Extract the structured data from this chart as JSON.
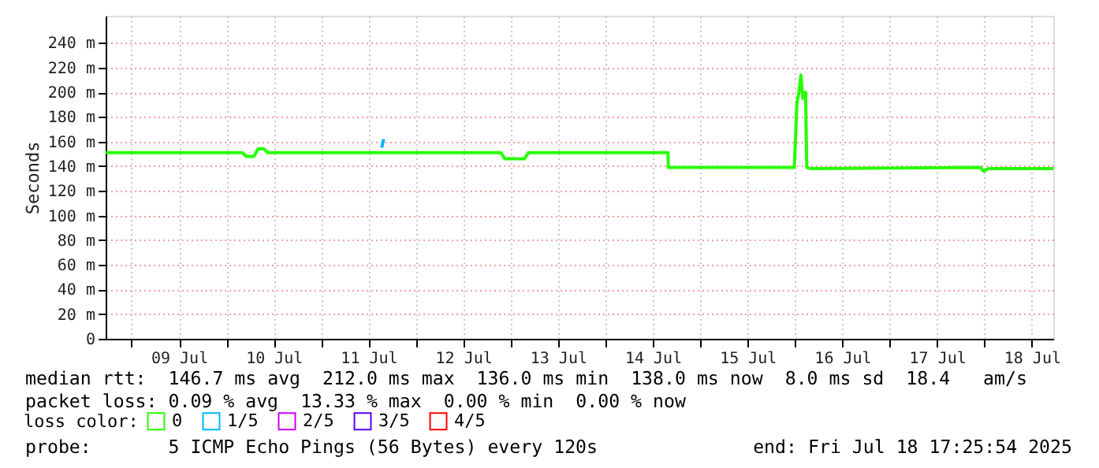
{
  "chart_data": {
    "type": "line",
    "ylabel": "Seconds",
    "legend_title": "loss color:",
    "legend": "bottom",
    "grid": true,
    "marker": "none",
    "line_style": "solid",
    "xlim": [
      "2025-07-08T17:25",
      "2025-07-18T17:25"
    ],
    "xticks": [
      {
        "value": "2025-07-09T00:00",
        "label": null
      },
      {
        "value": "2025-07-09T12:00",
        "label": "09 Jul"
      },
      {
        "value": "2025-07-10T00:00",
        "label": null
      },
      {
        "value": "2025-07-10T12:00",
        "label": "10 Jul"
      },
      {
        "value": "2025-07-11T00:00",
        "label": null
      },
      {
        "value": "2025-07-11T12:00",
        "label": "11 Jul"
      },
      {
        "value": "2025-07-12T00:00",
        "label": null
      },
      {
        "value": "2025-07-12T12:00",
        "label": "12 Jul"
      },
      {
        "value": "2025-07-13T00:00",
        "label": null
      },
      {
        "value": "2025-07-13T12:00",
        "label": "13 Jul"
      },
      {
        "value": "2025-07-14T00:00",
        "label": null
      },
      {
        "value": "2025-07-14T12:00",
        "label": "14 Jul"
      },
      {
        "value": "2025-07-15T00:00",
        "label": null
      },
      {
        "value": "2025-07-15T12:00",
        "label": "15 Jul"
      },
      {
        "value": "2025-07-16T00:00",
        "label": null
      },
      {
        "value": "2025-07-16T12:00",
        "label": "16 Jul"
      },
      {
        "value": "2025-07-17T00:00",
        "label": null
      },
      {
        "value": "2025-07-17T12:00",
        "label": "17 Jul"
      },
      {
        "value": "2025-07-18T00:00",
        "label": null
      },
      {
        "value": "2025-07-18T12:00",
        "label": "18 Jul"
      }
    ],
    "ylim": [
      0,
      262
    ],
    "yticks": [
      0,
      {
        "value": 20,
        "label": "20 m"
      },
      {
        "value": 40,
        "label": "40 m"
      },
      {
        "value": 60,
        "label": "60 m"
      },
      {
        "value": 80,
        "label": "80 m"
      },
      {
        "value": 100,
        "label": "100 m"
      },
      {
        "value": 120,
        "label": "120 m"
      },
      {
        "value": 140,
        "label": "140 m"
      },
      {
        "value": 160,
        "label": "160 m"
      },
      {
        "value": 180,
        "label": "180 m"
      },
      {
        "value": 200,
        "label": "200 m"
      },
      {
        "value": 220,
        "label": "220 m"
      },
      {
        "value": 240,
        "label": "240 m"
      }
    ],
    "series": [
      {
        "name": "0",
        "color": "#26ff00",
        "x": [
          "2025-07-08T17:30",
          "2025-07-10T04:00",
          "2025-07-10T05:00",
          "2025-07-10T07:00",
          "2025-07-10T08:00",
          "2025-07-10T09:30",
          "2025-07-10T10:30",
          "2025-07-12T21:30",
          "2025-07-12T22:30",
          "2025-07-13T03:30",
          "2025-07-13T04:30",
          "2025-07-14T15:50",
          "2025-07-14T15:55",
          "2025-07-15T23:50",
          "2025-07-16T00:30",
          "2025-07-16T01:00",
          "2025-07-16T01:30",
          "2025-07-16T02:00",
          "2025-07-16T02:40",
          "2025-07-16T03:00",
          "2025-07-16T04:00",
          "2025-07-17T23:00",
          "2025-07-17T23:45",
          "2025-07-18T01:00",
          "2025-07-18T17:25"
        ],
        "values": [
          151,
          151,
          148,
          148,
          154,
          154,
          151,
          151,
          146,
          146,
          151,
          151,
          139,
          139,
          191,
          200,
          214,
          195,
          200,
          139,
          138,
          139,
          136,
          138,
          138
        ]
      },
      {
        "name": "1/5",
        "color": "#00b8ff",
        "x": [
          "2025-07-11T15:20",
          "2025-07-11T15:50"
        ],
        "values": [
          155,
          162
        ]
      },
      {
        "name": "2/5",
        "color": "#cc00ff"
      },
      {
        "name": "3/5",
        "color": "#5500ff"
      },
      {
        "name": "4/5",
        "color": "#ff0000"
      }
    ],
    "annotations": [
      "median rtt:  146.7 ms avg  212.0 ms max  136.0 ms min  138.0 ms now  8.0 ms sd  18.4   am/s",
      "packet loss: 0.09 % avg  13.33 % max  0.00 % min  0.00 % now",
      "probe:       5 ICMP Echo Pings (56 Bytes) every 120s",
      "end: Fri Jul 18 17:25:54 2025"
    ]
  }
}
